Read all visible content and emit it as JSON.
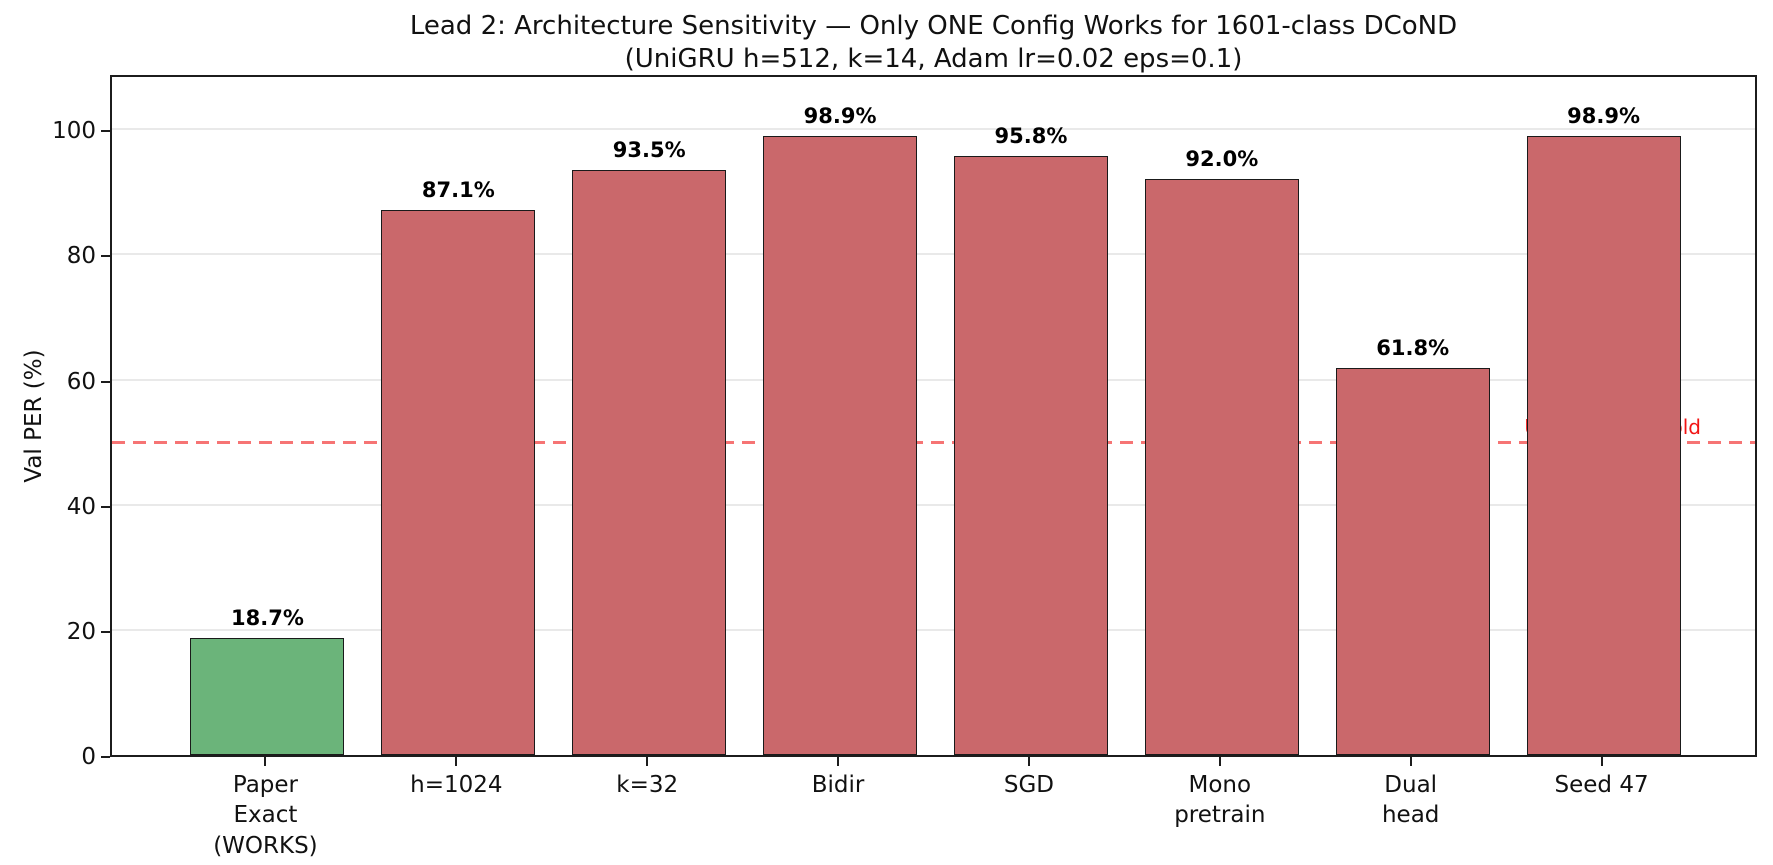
{
  "chart_data": {
    "type": "bar",
    "title": "Lead 2: Architecture Sensitivity — Only ONE Config Works for 1601-class DCoND",
    "subtitle": "(UniGRU h=512, k=14, Adam lr=0.02 eps=0.1)",
    "ylabel": "Val PER (%)",
    "xlabel": "",
    "categories": [
      "Paper\nExact\n(WORKS)",
      "h=1024",
      "k=32",
      "Bidir",
      "SGD",
      "Mono\npretrain",
      "Dual\nhead",
      "Seed 47"
    ],
    "values": [
      18.7,
      87.1,
      93.5,
      98.9,
      95.8,
      92.0,
      61.8,
      98.9
    ],
    "bar_labels": [
      "18.7%",
      "87.1%",
      "93.5%",
      "98.9%",
      "95.8%",
      "92.0%",
      "61.8%",
      "98.9%"
    ],
    "bar_colors": [
      "#6bb47a",
      "#ca686b",
      "#ca686b",
      "#ca686b",
      "#ca686b",
      "#ca686b",
      "#ca686b",
      "#ca686b"
    ],
    "highlight_index": 0,
    "ylim": [
      0,
      109
    ],
    "yticks": [
      0,
      20,
      40,
      60,
      80,
      100
    ],
    "grid": "horizontal-light",
    "threshold": {
      "value": 50,
      "label": "Useless threshold",
      "line_color": "#f45c5c",
      "label_color": "#f21414"
    }
  },
  "colors": {
    "works_green": "#6bb47a",
    "fail_red": "#ca686b",
    "axis": "#1c1c1c",
    "grid": "#e9e9e9",
    "background": "#ffffff"
  }
}
